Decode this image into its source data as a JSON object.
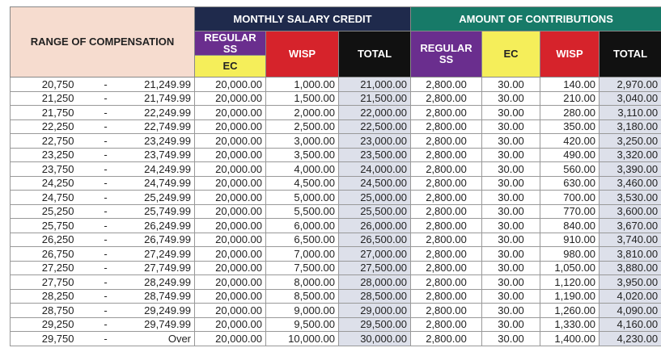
{
  "header": {
    "range": "RANGE OF COMPENSATION",
    "msc": "MONTHLY SALARY CREDIT",
    "contributions": "AMOUNT OF CONTRIBUTIONS",
    "msc_columns": [
      "REGULAR SS",
      "EC",
      "WISP",
      "TOTAL"
    ],
    "contribution_columns": [
      "REGULAR SS",
      "EC",
      "WISP",
      "TOTAL"
    ]
  },
  "table": {
    "rows": [
      [
        "20,750",
        "-",
        "21,249.99",
        "20,000.00",
        "1,000.00",
        "21,000.00",
        "2,800.00",
        "30.00",
        "140.00",
        "2,970.00"
      ],
      [
        "21,250",
        "-",
        "21,749.99",
        "20,000.00",
        "1,500.00",
        "21,500.00",
        "2,800.00",
        "30.00",
        "210.00",
        "3,040.00"
      ],
      [
        "21,750",
        "-",
        "22,249.99",
        "20,000.00",
        "2,000.00",
        "22,000.00",
        "2,800.00",
        "30.00",
        "280.00",
        "3,110.00"
      ],
      [
        "22,250",
        "-",
        "22,749.99",
        "20,000.00",
        "2,500.00",
        "22,500.00",
        "2,800.00",
        "30.00",
        "350.00",
        "3,180.00"
      ],
      [
        "22,750",
        "-",
        "23,249.99",
        "20,000.00",
        "3,000.00",
        "23,000.00",
        "2,800.00",
        "30.00",
        "420.00",
        "3,250.00"
      ],
      [
        "23,250",
        "-",
        "23,749.99",
        "20,000.00",
        "3,500.00",
        "23,500.00",
        "2,800.00",
        "30.00",
        "490.00",
        "3,320.00"
      ],
      [
        "23,750",
        "-",
        "24,249.99",
        "20,000.00",
        "4,000.00",
        "24,000.00",
        "2,800.00",
        "30.00",
        "560.00",
        "3,390.00"
      ],
      [
        "24,250",
        "-",
        "24,749.99",
        "20,000.00",
        "4,500.00",
        "24,500.00",
        "2,800.00",
        "30.00",
        "630.00",
        "3,460.00"
      ],
      [
        "24,750",
        "-",
        "25,249.99",
        "20,000.00",
        "5,000.00",
        "25,000.00",
        "2,800.00",
        "30.00",
        "700.00",
        "3,530.00"
      ],
      [
        "25,250",
        "-",
        "25,749.99",
        "20,000.00",
        "5,500.00",
        "25,500.00",
        "2,800.00",
        "30.00",
        "770.00",
        "3,600.00"
      ],
      [
        "25,750",
        "-",
        "26,249.99",
        "20,000.00",
        "6,000.00",
        "26,000.00",
        "2,800.00",
        "30.00",
        "840.00",
        "3,670.00"
      ],
      [
        "26,250",
        "-",
        "26,749.99",
        "20,000.00",
        "6,500.00",
        "26,500.00",
        "2,800.00",
        "30.00",
        "910.00",
        "3,740.00"
      ],
      [
        "26,750",
        "-",
        "27,249.99",
        "20,000.00",
        "7,000.00",
        "27,000.00",
        "2,800.00",
        "30.00",
        "980.00",
        "3,810.00"
      ],
      [
        "27,250",
        "-",
        "27,749.99",
        "20,000.00",
        "7,500.00",
        "27,500.00",
        "2,800.00",
        "30.00",
        "1,050.00",
        "3,880.00"
      ],
      [
        "27,750",
        "-",
        "28,249.99",
        "20,000.00",
        "8,000.00",
        "28,000.00",
        "2,800.00",
        "30.00",
        "1,120.00",
        "3,950.00"
      ],
      [
        "28,250",
        "-",
        "28,749.99",
        "20,000.00",
        "8,500.00",
        "28,500.00",
        "2,800.00",
        "30.00",
        "1,190.00",
        "4,020.00"
      ],
      [
        "28,750",
        "-",
        "29,249.99",
        "20,000.00",
        "9,000.00",
        "29,000.00",
        "2,800.00",
        "30.00",
        "1,260.00",
        "4,090.00"
      ],
      [
        "29,250",
        "-",
        "29,749.99",
        "20,000.00",
        "9,500.00",
        "29,500.00",
        "2,800.00",
        "30.00",
        "1,330.00",
        "4,160.00"
      ],
      [
        "29,750",
        "-",
        "Over",
        "20,000.00",
        "10,000.00",
        "30,000.00",
        "2,800.00",
        "30.00",
        "1,400.00",
        "4,230.00"
      ]
    ]
  }
}
